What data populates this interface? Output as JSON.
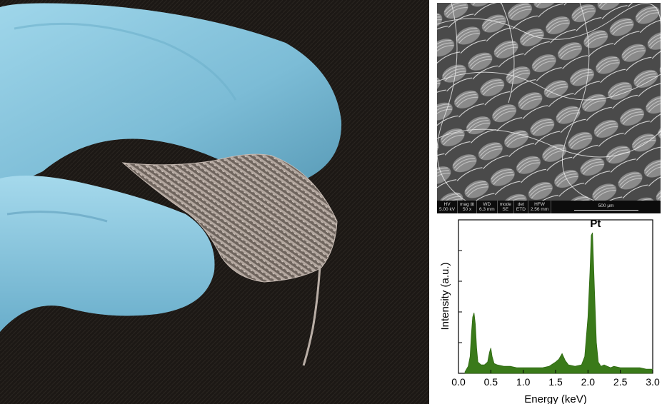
{
  "photo": {
    "subject": "gloved-fingers-holding-pt-coated-textile",
    "colors": {
      "glove": "#7fbfd8",
      "fabric": "#8c8079",
      "background": "#1e1a17"
    }
  },
  "sem": {
    "labels": {
      "hv_label": "HV",
      "hv_value": "5.00 kV",
      "mag_label": "mag ⊞",
      "mag_value": "50 x",
      "wd_label": "WD",
      "wd_value": "6.3 mm",
      "mode_label": "mode",
      "mode_value": "SE",
      "det_label": "det",
      "det_value": "ETD",
      "hfw_label": "HFW",
      "hfw_value": "2.56 mm",
      "scale_label": "500 μm"
    }
  },
  "chart_data": {
    "type": "area",
    "xlabel": "Energy (keV)",
    "ylabel": "Intensity (a.u.)",
    "xlim": [
      0.0,
      3.0
    ],
    "xticks": [
      "0.0",
      "0.5",
      "1.0",
      "1.5",
      "2.0",
      "2.5",
      "3.0"
    ],
    "annotations": [
      {
        "text": "Pt",
        "x": 2.05
      }
    ],
    "fill_color": "#3a7a1a",
    "series": [
      {
        "x": [
          0.1,
          0.15,
          0.18,
          0.2,
          0.22,
          0.24,
          0.26,
          0.28,
          0.3,
          0.35,
          0.4,
          0.45,
          0.48,
          0.5,
          0.52,
          0.55,
          0.6,
          0.7,
          0.8,
          0.9,
          1.0,
          1.1,
          1.2,
          1.3,
          1.4,
          1.5,
          1.55,
          1.6,
          1.65,
          1.7,
          1.8,
          1.9,
          1.95,
          2.0,
          2.03,
          2.05,
          2.07,
          2.1,
          2.13,
          2.16,
          2.2,
          2.25,
          2.3,
          2.35,
          2.4,
          2.5,
          2.6,
          2.7,
          2.8,
          2.9,
          3.0
        ],
        "y": [
          0.01,
          0.05,
          0.12,
          0.28,
          0.4,
          0.43,
          0.35,
          0.18,
          0.08,
          0.06,
          0.06,
          0.08,
          0.15,
          0.18,
          0.12,
          0.07,
          0.06,
          0.05,
          0.05,
          0.04,
          0.04,
          0.04,
          0.04,
          0.04,
          0.05,
          0.08,
          0.1,
          0.14,
          0.09,
          0.06,
          0.05,
          0.06,
          0.12,
          0.4,
          0.72,
          0.98,
          1.0,
          0.6,
          0.22,
          0.08,
          0.05,
          0.06,
          0.05,
          0.04,
          0.05,
          0.04,
          0.04,
          0.04,
          0.04,
          0.03,
          0.03
        ]
      }
    ]
  }
}
